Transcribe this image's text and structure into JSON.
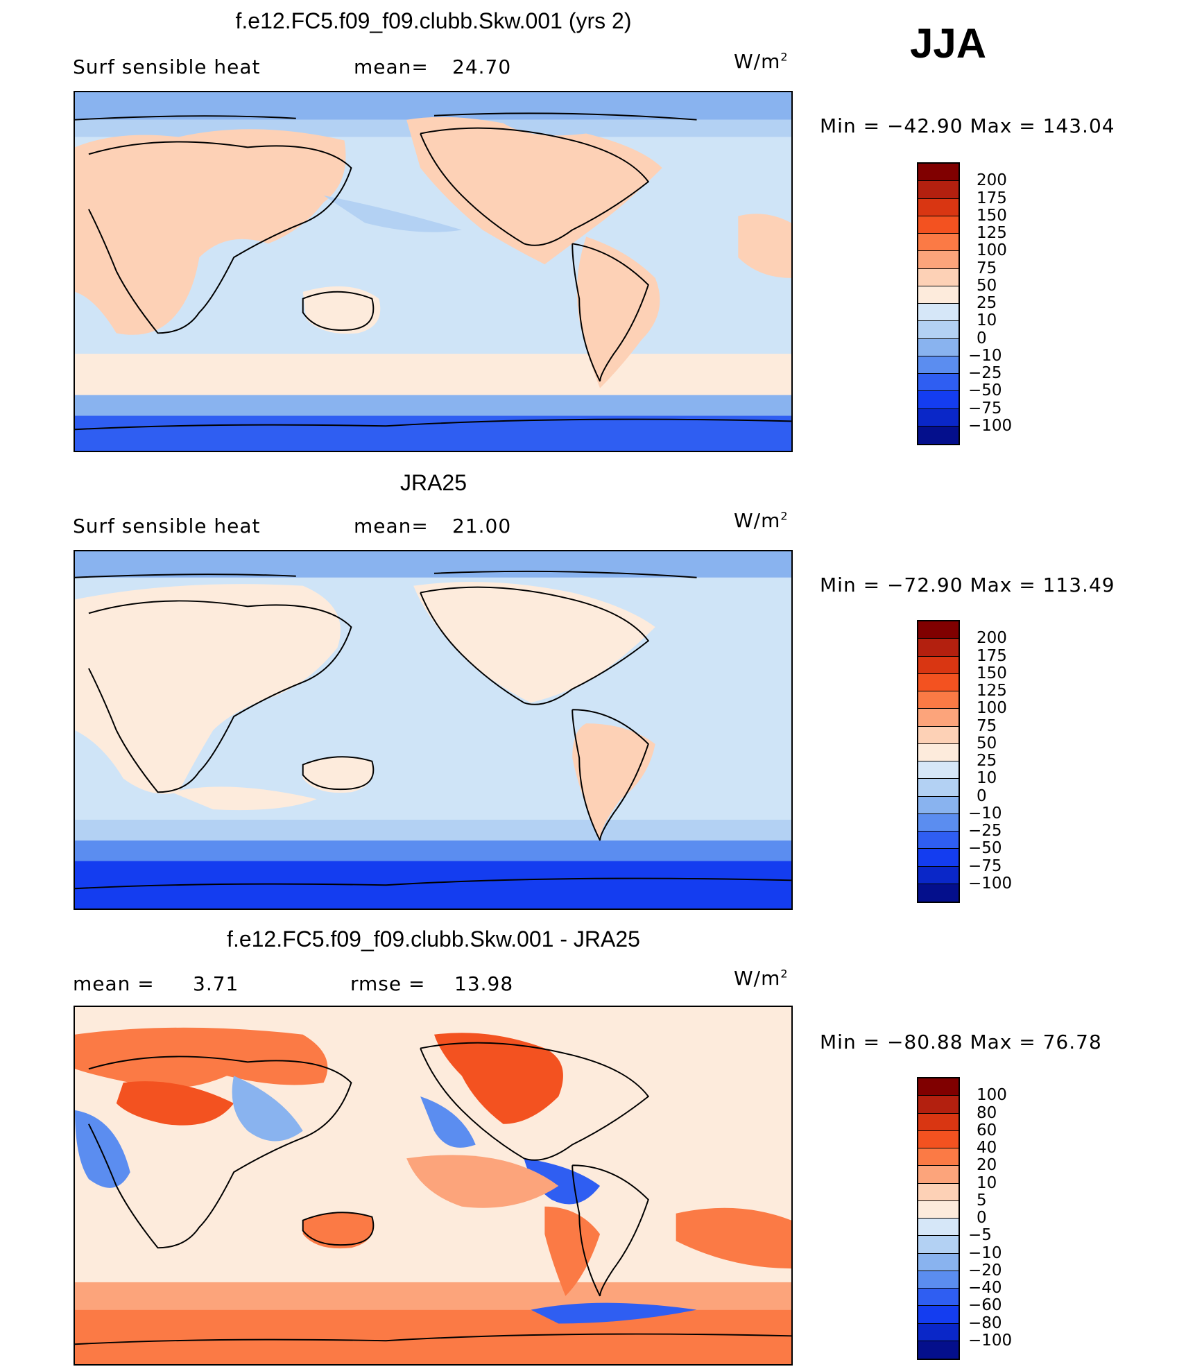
{
  "season": "JJA",
  "units_label": "W/m",
  "units_exp": "2",
  "panels": [
    {
      "title": "f.e12.FC5.f09_f09.clubb.Skw.001 (yrs 2)",
      "left_label": "Surf  sensible  heat",
      "stat_label": "mean=",
      "stat_value": "24.70",
      "minmax": "Min  =  −42.90  Max  =  143.04",
      "colorbar": {
        "colors": [
          "#800000",
          "#b3200f",
          "#d93612",
          "#f35220",
          "#fb7a45",
          "#fca47b",
          "#fdd1b6",
          "#fdebdc",
          "#d6e7f8",
          "#b3d1f3",
          "#89b3ef",
          "#5b8df0",
          "#2f5ef2",
          "#143df0",
          "#0a27c8",
          "#040f8c"
        ],
        "labels": [
          "200",
          "175",
          "150",
          "125",
          "100",
          "75",
          "50",
          "25",
          "10",
          "0",
          "−10",
          "−25",
          "−50",
          "−75",
          "−100"
        ]
      }
    },
    {
      "title": "JRA25",
      "left_label": "Surf  sensible  heat",
      "stat_label": "mean=",
      "stat_value": "21.00",
      "minmax": "Min  =  −72.90  Max  =  113.49",
      "colorbar": {
        "colors": [
          "#800000",
          "#b3200f",
          "#d93612",
          "#f35220",
          "#fb7a45",
          "#fca47b",
          "#fdd1b6",
          "#fdebdc",
          "#d6e7f8",
          "#b3d1f3",
          "#89b3ef",
          "#5b8df0",
          "#2f5ef2",
          "#143df0",
          "#0a27c8",
          "#040f8c"
        ],
        "labels": [
          "200",
          "175",
          "150",
          "125",
          "100",
          "75",
          "50",
          "25",
          "10",
          "0",
          "−10",
          "−25",
          "−50",
          "−75",
          "−100"
        ]
      }
    },
    {
      "title": "f.e12.FC5.f09_f09.clubb.Skw.001 - JRA25",
      "left_label": "mean  =",
      "left_value": "3.71",
      "stat_label": "rmse  =",
      "stat_value": "13.98",
      "minmax": "Min  =  −80.88  Max  =    76.78",
      "colorbar": {
        "colors": [
          "#800000",
          "#b3200f",
          "#d93612",
          "#f35220",
          "#fb7a45",
          "#fca47b",
          "#fdd1b6",
          "#fdebdc",
          "#d6e7f8",
          "#b3d1f3",
          "#89b3ef",
          "#5b8df0",
          "#2f5ef2",
          "#143df0",
          "#0a27c8",
          "#040f8c"
        ],
        "labels": [
          "100",
          "80",
          "60",
          "40",
          "20",
          "10",
          "5",
          "0",
          "−5",
          "−10",
          "−20",
          "−40",
          "−60",
          "−80",
          "−100"
        ]
      }
    }
  ]
}
